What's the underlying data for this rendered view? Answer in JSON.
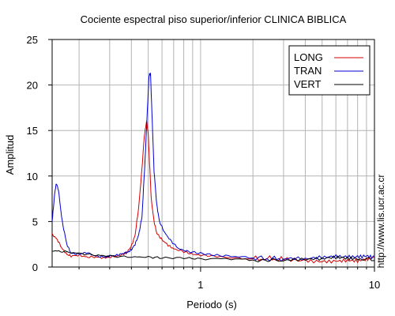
{
  "chart_data": {
    "type": "line",
    "title": "Cociente espectral piso superior/inferior  CLINICA BIBLICA",
    "xlabel": "Periodo (s)",
    "ylabel": "Amplitud",
    "x_scale": "log",
    "xlim": [
      0.14,
      10
    ],
    "ylim": [
      0,
      25
    ],
    "x_ticks": [
      {
        "value": 1,
        "label": "1"
      },
      {
        "value": 10,
        "label": "10"
      }
    ],
    "y_ticks": [
      {
        "value": 0,
        "label": "0"
      },
      {
        "value": 5,
        "label": "5"
      },
      {
        "value": 10,
        "label": "10"
      },
      {
        "value": 15,
        "label": "15"
      },
      {
        "value": 20,
        "label": "20"
      },
      {
        "value": 25,
        "label": "25"
      }
    ],
    "grid": true,
    "legend_position": "top-right",
    "series": [
      {
        "name": "LONG",
        "color": "#d40000",
        "points": [
          [
            0.14,
            3.6
          ],
          [
            0.15,
            3.0
          ],
          [
            0.16,
            2.0
          ],
          [
            0.17,
            1.4
          ],
          [
            0.18,
            1.2
          ],
          [
            0.2,
            1.3
          ],
          [
            0.22,
            1.1
          ],
          [
            0.25,
            1.1
          ],
          [
            0.28,
            1.0
          ],
          [
            0.3,
            1.1
          ],
          [
            0.33,
            1.2
          ],
          [
            0.36,
            1.4
          ],
          [
            0.38,
            1.7
          ],
          [
            0.4,
            2.3
          ],
          [
            0.42,
            3.5
          ],
          [
            0.44,
            6.5
          ],
          [
            0.46,
            10.8
          ],
          [
            0.475,
            14.5
          ],
          [
            0.49,
            16.1
          ],
          [
            0.5,
            14.5
          ],
          [
            0.51,
            11.0
          ],
          [
            0.52,
            7.5
          ],
          [
            0.54,
            5.0
          ],
          [
            0.56,
            3.7
          ],
          [
            0.6,
            3.0
          ],
          [
            0.65,
            2.4
          ],
          [
            0.7,
            2.0
          ],
          [
            0.8,
            1.7
          ],
          [
            0.9,
            1.4
          ],
          [
            1.0,
            1.3
          ],
          [
            1.2,
            1.2
          ],
          [
            1.5,
            1.0
          ],
          [
            2.0,
            0.9
          ],
          [
            2.5,
            0.9
          ],
          [
            3.0,
            0.8
          ],
          [
            4.0,
            0.7
          ],
          [
            5.0,
            0.7
          ],
          [
            6.0,
            0.8
          ],
          [
            7.0,
            0.9
          ],
          [
            8.0,
            0.8
          ],
          [
            9.0,
            0.9
          ],
          [
            10.0,
            1.0
          ]
        ]
      },
      {
        "name": "TRAN",
        "color": "#0000d0",
        "points": [
          [
            0.14,
            5.0
          ],
          [
            0.145,
            8.2
          ],
          [
            0.148,
            9.2
          ],
          [
            0.152,
            8.5
          ],
          [
            0.16,
            5.0
          ],
          [
            0.17,
            2.5
          ],
          [
            0.18,
            1.5
          ],
          [
            0.2,
            1.4
          ],
          [
            0.22,
            1.6
          ],
          [
            0.25,
            1.2
          ],
          [
            0.28,
            1.1
          ],
          [
            0.3,
            1.2
          ],
          [
            0.33,
            1.3
          ],
          [
            0.36,
            1.5
          ],
          [
            0.38,
            1.6
          ],
          [
            0.4,
            1.9
          ],
          [
            0.42,
            2.5
          ],
          [
            0.44,
            3.5
          ],
          [
            0.46,
            5.5
          ],
          [
            0.48,
            12.0
          ],
          [
            0.495,
            17.5
          ],
          [
            0.505,
            21.0
          ],
          [
            0.515,
            21.3
          ],
          [
            0.525,
            17.0
          ],
          [
            0.54,
            10.5
          ],
          [
            0.56,
            6.8
          ],
          [
            0.58,
            5.0
          ],
          [
            0.62,
            3.8
          ],
          [
            0.68,
            2.8
          ],
          [
            0.75,
            2.0
          ],
          [
            0.85,
            1.7
          ],
          [
            1.0,
            1.5
          ],
          [
            1.2,
            1.3
          ],
          [
            1.5,
            1.2
          ],
          [
            2.0,
            1.0
          ],
          [
            2.5,
            0.9
          ],
          [
            3.0,
            0.9
          ],
          [
            4.0,
            0.8
          ],
          [
            5.0,
            0.9
          ],
          [
            6.0,
            1.0
          ],
          [
            7.0,
            1.0
          ],
          [
            8.0,
            1.1
          ],
          [
            9.0,
            1.3
          ],
          [
            10.0,
            1.2
          ]
        ]
      },
      {
        "name": "VERT",
        "color": "#000000",
        "points": [
          [
            0.14,
            1.8
          ],
          [
            0.16,
            1.7
          ],
          [
            0.2,
            1.5
          ],
          [
            0.25,
            1.3
          ],
          [
            0.3,
            1.2
          ],
          [
            0.4,
            1.1
          ],
          [
            0.5,
            1.1
          ],
          [
            0.6,
            1.0
          ],
          [
            0.8,
            1.0
          ],
          [
            1.0,
            0.9
          ],
          [
            1.5,
            0.9
          ],
          [
            2.0,
            0.8
          ],
          [
            3.0,
            0.8
          ],
          [
            4.0,
            0.8
          ],
          [
            5.0,
            0.8
          ],
          [
            6.0,
            0.9
          ],
          [
            7.0,
            0.8
          ],
          [
            8.0,
            0.8
          ],
          [
            10.0,
            0.7
          ]
        ]
      }
    ]
  },
  "side_url": "http://www.lis.ucr.ac.cr"
}
